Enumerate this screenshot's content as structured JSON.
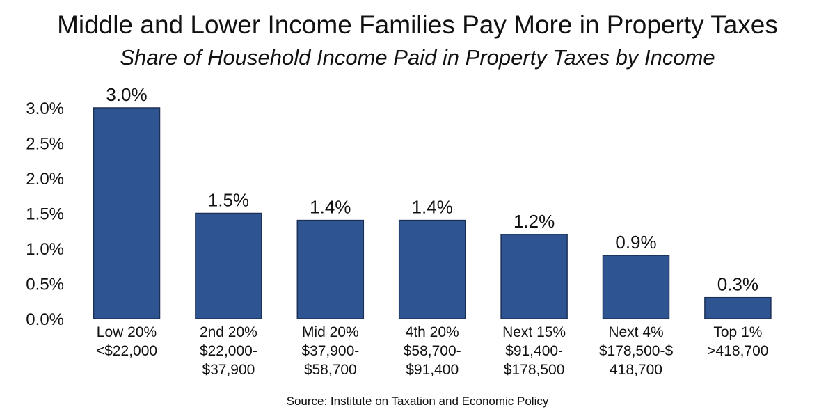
{
  "chart_data": {
    "type": "bar",
    "title": "Middle and Lower Income Families Pay More in Property Taxes",
    "subtitle": "Share of Household Income Paid in Property Taxes by Income",
    "source": "Source: Institute on Taxation and Economic Policy",
    "categories": [
      [
        "Low 20%",
        "<$22,000"
      ],
      [
        "2nd 20%",
        "$22,000-",
        "$37,900"
      ],
      [
        "Mid 20%",
        "$37,900-",
        "$58,700"
      ],
      [
        "4th 20%",
        "$58,700-",
        "$91,400"
      ],
      [
        "Next 15%",
        "$91,400-",
        "$178,500"
      ],
      [
        "Next 4%",
        "$178,500-$",
        "418,700"
      ],
      [
        "Top 1%",
        ">418,700"
      ]
    ],
    "values": [
      3.0,
      1.5,
      1.4,
      1.4,
      1.2,
      0.9,
      0.3
    ],
    "data_labels": [
      "3.0%",
      "1.5%",
      "1.4%",
      "1.4%",
      "1.2%",
      "0.9%",
      "0.3%"
    ],
    "ylim": [
      0,
      3.0
    ],
    "yticks": [
      0.0,
      0.5,
      1.0,
      1.5,
      2.0,
      2.5,
      3.0
    ],
    "ytick_labels": [
      "0.0%",
      "0.5%",
      "1.0%",
      "1.5%",
      "2.0%",
      "2.5%",
      "3.0%"
    ],
    "grid": false,
    "bar_color": "#2E5592",
    "bar_edge_color": "#1A2F55"
  }
}
